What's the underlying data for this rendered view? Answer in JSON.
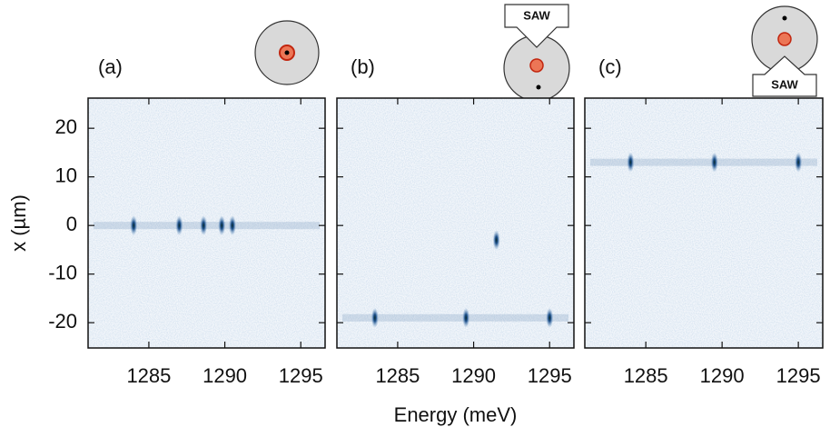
{
  "chart_data": [
    {
      "type": "spectral-image",
      "panel_label": "(a)",
      "ylabel": "x (µm)",
      "show_ytick_labels": true,
      "color": "#1c4f8a",
      "xlim": [
        1281,
        1296.6
      ],
      "xticks": [
        1285,
        1290,
        1295
      ],
      "ylim": [
        -25.2,
        26.2
      ],
      "yticks": [
        20,
        10,
        0,
        -10,
        -20
      ],
      "lines": [
        0
      ],
      "x": [
        1284,
        1287,
        1288.6,
        1289.8,
        1290.5
      ],
      "y": [
        0,
        0,
        0,
        0,
        0
      ]
    },
    {
      "type": "spectral-image",
      "panel_label": "(b)",
      "xlabel": "Energy (meV)",
      "arrow_label": "SAW",
      "show_ytick_labels": false,
      "color": "#1c4f8a",
      "xlim": [
        1281,
        1296.6
      ],
      "xticks": [
        1285,
        1290,
        1295
      ],
      "ylim": [
        -25.2,
        26.2
      ],
      "yticks": [
        20,
        10,
        0,
        -10,
        -20
      ],
      "lines": [
        -19
      ],
      "x": [
        1283.5,
        1289.5,
        1295,
        1291.5
      ],
      "y": [
        -19,
        -19,
        -19,
        -3
      ]
    },
    {
      "type": "spectral-image",
      "panel_label": "(c)",
      "arrow_label": "SAW",
      "show_ytick_labels": false,
      "color": "#1c4f8a",
      "xlim": [
        1281,
        1296.6
      ],
      "xticks": [
        1285,
        1290,
        1295
      ],
      "ylim": [
        -25.2,
        26.2
      ],
      "yticks": [
        20,
        10,
        0,
        -10,
        -20
      ],
      "lines": [
        13
      ],
      "x": [
        1284,
        1289.5,
        1295
      ],
      "y": [
        13,
        13,
        13
      ]
    }
  ]
}
